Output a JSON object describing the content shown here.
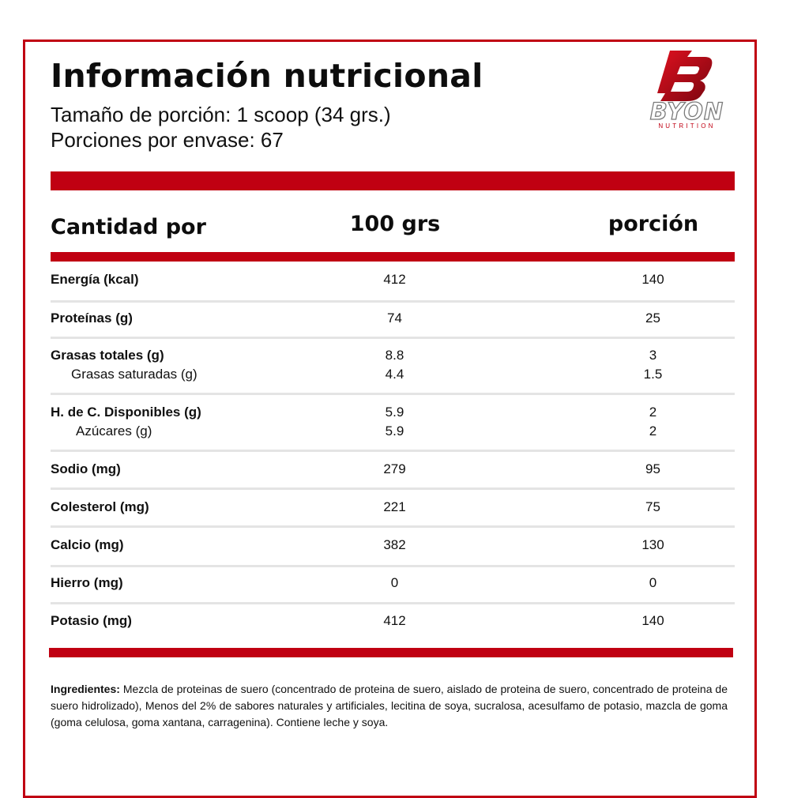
{
  "header": {
    "title": "Información nutricional",
    "serving_size": "Tamaño de porción: 1 scoop (34 grs.)",
    "servings": "Porciones por envase: 67"
  },
  "brand": {
    "name": "BYON",
    "tagline": "NUTRITION",
    "color": "#c00012"
  },
  "table": {
    "header_label": "Cantidad por",
    "col1": "100 grs",
    "col2": "porción",
    "rows": [
      {
        "label": "Energía (kcal)",
        "v1": "412",
        "v2": "140"
      },
      {
        "label": "Proteínas (g)",
        "v1": "74",
        "v2": "25"
      },
      {
        "label": "Grasas totales (g)",
        "v1": "8.8",
        "v2": "3",
        "sub_label": "Grasas saturadas (g)",
        "sub_v1": "4.4",
        "sub_v2": "1.5"
      },
      {
        "label": "H. de C. Disponibles (g)",
        "v1": "5.9",
        "v2": "2",
        "sub_label": "Azúcares (g)",
        "sub_v1": "5.9",
        "sub_v2": "2"
      },
      {
        "label": "Sodio (mg)",
        "v1": "279",
        "v2": "95"
      },
      {
        "label": "Colesterol (mg)",
        "v1": "221",
        "v2": "75"
      },
      {
        "label": "Calcio (mg)",
        "v1": "382",
        "v2": "130"
      },
      {
        "label": "Hierro (mg)",
        "v1": "0",
        "v2": "0"
      },
      {
        "label": "Potasio (mg)",
        "v1": "412",
        "v2": "140"
      }
    ]
  },
  "ingredients": {
    "label": "Ingredientes:",
    "text": " Mezcla de proteinas de suero (concentrado de proteina de suero, aislado de proteina de suero, concentrado de proteina de suero hidrolizado), Menos del 2% de sabores naturales y artificiales, lecitina de soya, sucralosa, acesulfamo de potasio, mazcla de goma (goma celulosa, goma xantana, carragenina). Contiene leche y soya."
  }
}
